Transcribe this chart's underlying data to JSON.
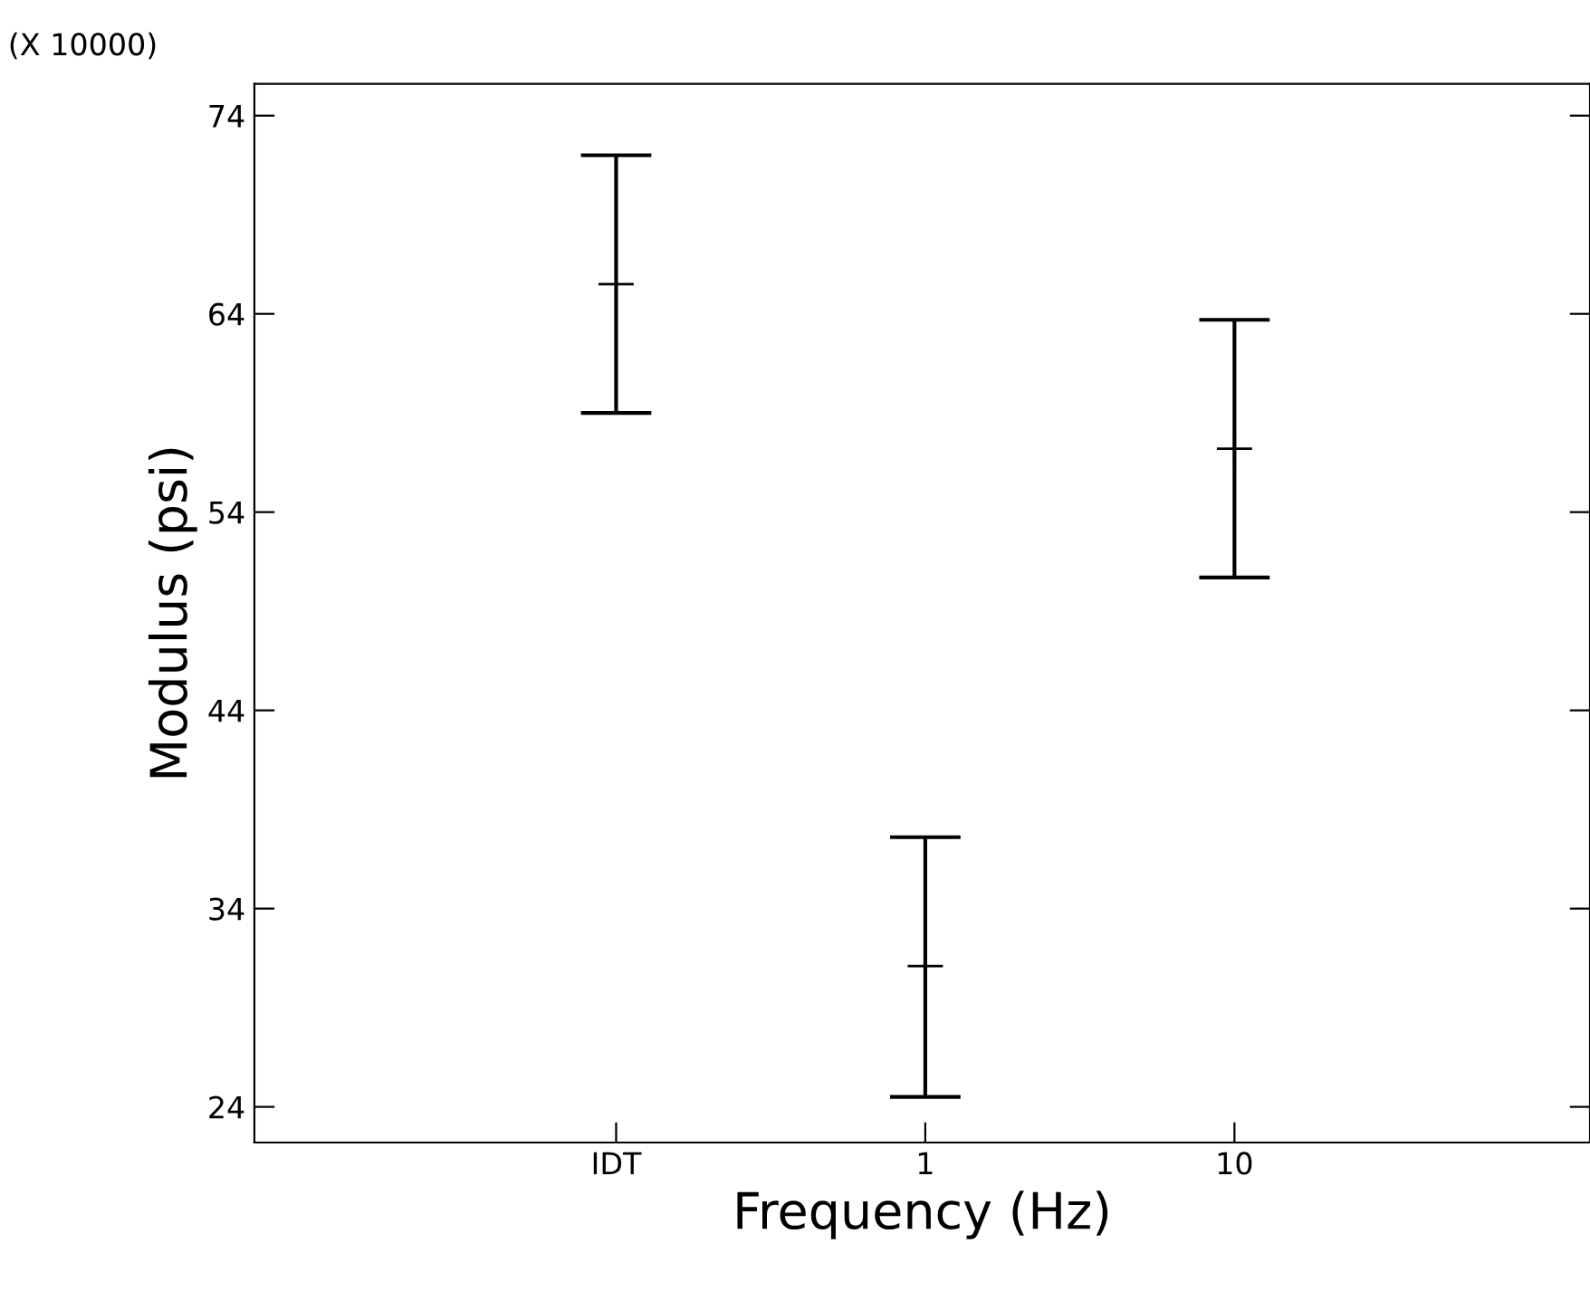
{
  "chart_data": {
    "type": "scatter",
    "xlabel": "Frequency (Hz)",
    "ylabel": "Modulus (psi)",
    "annotations": [
      "(X 10000)"
    ],
    "categories": [
      "IDT",
      "1",
      "10"
    ],
    "series": [
      {
        "color": "#000000",
        "values": [
          65.5,
          31.1,
          57.2
        ],
        "errors": [
          [
            59.0,
            72.0
          ],
          [
            24.5,
            37.6
          ],
          [
            50.7,
            63.7
          ]
        ]
      }
    ],
    "marker": "cross",
    "ylim": [
      22.2,
      75.6
    ],
    "yticks": [
      24,
      34,
      44,
      54,
      64,
      74
    ],
    "grid": false
  }
}
